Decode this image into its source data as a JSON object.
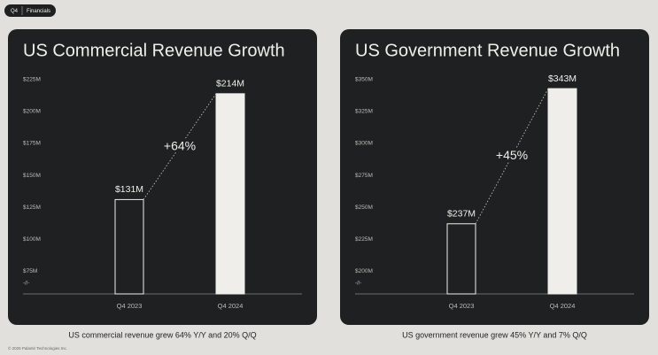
{
  "header": {
    "badge": "Q4",
    "section": "Financials"
  },
  "chart_data": [
    {
      "type": "bar",
      "title": "US Commercial Revenue Growth",
      "categories": [
        "Q4 2023",
        "Q4 2024"
      ],
      "values": [
        131,
        214
      ],
      "value_labels": [
        "$131M",
        "$214M"
      ],
      "colors": [
        "#1e2021",
        "#efeeea"
      ],
      "ylim": [
        57,
        225
      ],
      "yticks": [
        {
          "value": 75,
          "label": "$75M"
        },
        {
          "value": 100,
          "label": "$100M"
        },
        {
          "value": 125,
          "label": "$125M"
        },
        {
          "value": 150,
          "label": "$150M"
        },
        {
          "value": 175,
          "label": "$175M"
        },
        {
          "value": 200,
          "label": "$200M"
        },
        {
          "value": 225,
          "label": "$225M"
        }
      ],
      "axis_break": "-//-",
      "annotation": "+64%",
      "caption": "US commercial revenue grew 64% Y/Y and 20% Q/Q"
    },
    {
      "type": "bar",
      "title": "US Government Revenue Growth",
      "categories": [
        "Q4 2023",
        "Q4 2024"
      ],
      "values": [
        237,
        343
      ],
      "value_labels": [
        "$237M",
        "$343M"
      ],
      "colors": [
        "#1e2021",
        "#efeeea"
      ],
      "ylim": [
        182,
        350
      ],
      "yticks": [
        {
          "value": 200,
          "label": "$200M"
        },
        {
          "value": 225,
          "label": "$225M"
        },
        {
          "value": 250,
          "label": "$250M"
        },
        {
          "value": 275,
          "label": "$275M"
        },
        {
          "value": 300,
          "label": "$300M"
        },
        {
          "value": 325,
          "label": "$325M"
        },
        {
          "value": 350,
          "label": "$350M"
        }
      ],
      "axis_break": "-//-",
      "annotation": "+45%",
      "caption": "US government revenue grew 45% Y/Y and 7% Q/Q"
    }
  ],
  "footer": "© 2025 Palantir Technologies Inc."
}
